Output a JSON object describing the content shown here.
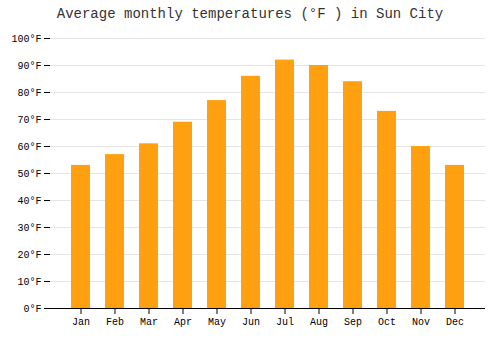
{
  "chart_data": {
    "type": "bar",
    "title": "Average monthly temperatures (°F ) in Sun City",
    "categories": [
      "Jan",
      "Feb",
      "Mar",
      "Apr",
      "May",
      "Jun",
      "Jul",
      "Aug",
      "Sep",
      "Oct",
      "Nov",
      "Dec"
    ],
    "values": [
      53,
      57,
      61,
      69,
      77,
      86,
      92,
      90,
      84,
      73,
      60,
      53
    ],
    "color": "#FFA010",
    "ylim": [
      0,
      100
    ],
    "yticks": [
      {
        "value": 0,
        "label": "0°F"
      },
      {
        "value": 10,
        "label": "10°F"
      },
      {
        "value": 20,
        "label": "20°F"
      },
      {
        "value": 30,
        "label": "30°F"
      },
      {
        "value": 40,
        "label": "40°F"
      },
      {
        "value": 50,
        "label": "50°F"
      },
      {
        "value": 60,
        "label": "60°F"
      },
      {
        "value": 70,
        "label": "70°F"
      },
      {
        "value": 80,
        "label": "80°F"
      },
      {
        "value": 90,
        "label": "90°F"
      },
      {
        "value": 100,
        "label": "100°F"
      }
    ],
    "grid": true
  }
}
